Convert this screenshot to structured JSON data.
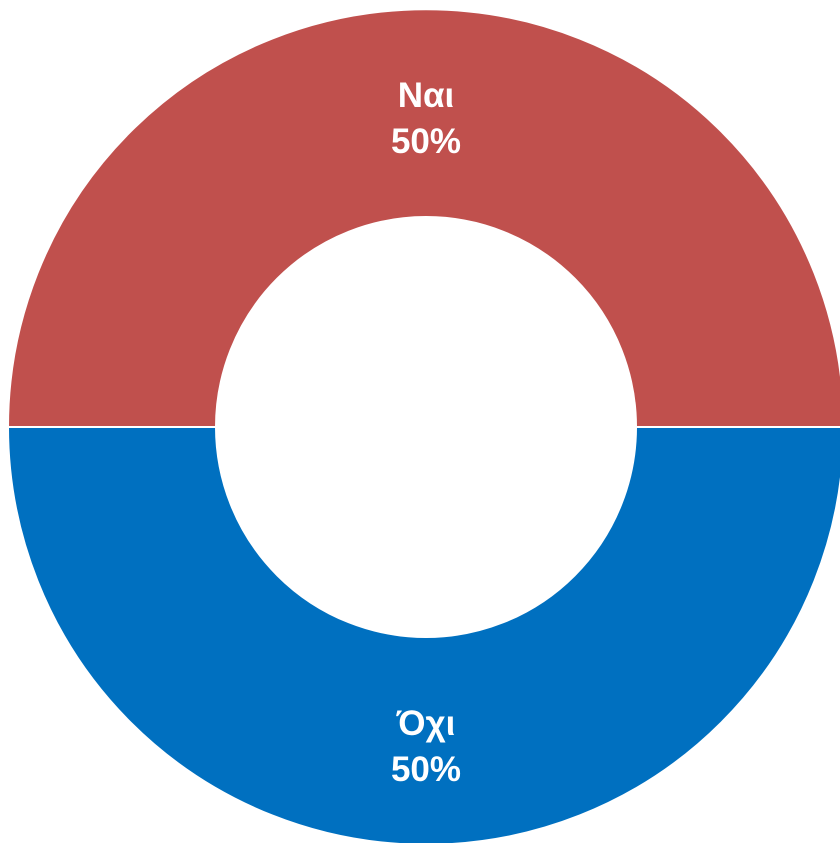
{
  "chart_data": {
    "type": "pie",
    "title": "",
    "slices": [
      {
        "label": "Ναι",
        "value": 50,
        "display": "50%",
        "color": "#C0504D"
      },
      {
        "label": "Όχι",
        "value": 50,
        "display": "50%",
        "color": "#0070C0"
      }
    ]
  }
}
